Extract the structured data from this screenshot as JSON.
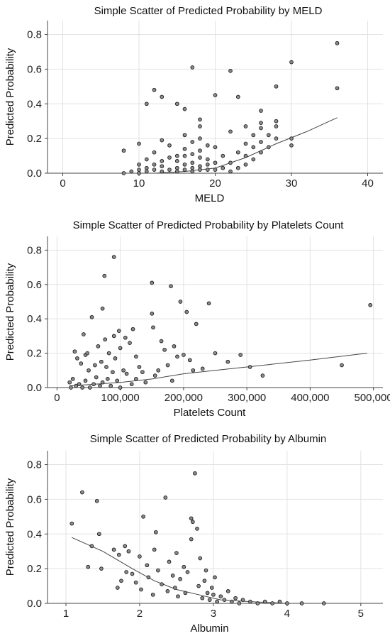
{
  "chart_data": [
    {
      "type": "scatter",
      "title": "Simple Scatter of Predicted Probability by MELD",
      "xlabel": "MELD",
      "ylabel": "Predicted Probability",
      "xlim": [
        -2,
        42
      ],
      "ylim": [
        0,
        0.88
      ],
      "xticks": [
        0,
        10,
        20,
        30,
        40
      ],
      "xticklabels": [
        "0",
        "10",
        "20",
        "30",
        "40"
      ],
      "yticks": [
        0,
        0.2,
        0.4,
        0.6,
        0.8
      ],
      "yticklabels": [
        "0.0",
        "0.2",
        "0.4",
        "0.6",
        "0.8"
      ],
      "grid": true,
      "points": [
        [
          8,
          0.13
        ],
        [
          8,
          0.0
        ],
        [
          9,
          0.01
        ],
        [
          10,
          0.17
        ],
        [
          10,
          0.0
        ],
        [
          10,
          0.02
        ],
        [
          10,
          0.05
        ],
        [
          11,
          0.4
        ],
        [
          11,
          0.01
        ],
        [
          11,
          0.03
        ],
        [
          11,
          0.08
        ],
        [
          12,
          0.48
        ],
        [
          12,
          0.02
        ],
        [
          12,
          0.05
        ],
        [
          12,
          0.12
        ],
        [
          13,
          0.44
        ],
        [
          13,
          0.19
        ],
        [
          13,
          0.01
        ],
        [
          13,
          0.04
        ],
        [
          13,
          0.07
        ],
        [
          14,
          0.16
        ],
        [
          14,
          0.02
        ],
        [
          14,
          0.09
        ],
        [
          15,
          0.4
        ],
        [
          15,
          0.01
        ],
        [
          15,
          0.03
        ],
        [
          15,
          0.1
        ],
        [
          15,
          0.07
        ],
        [
          16,
          0.37
        ],
        [
          16,
          0.22
        ],
        [
          16,
          0.14
        ],
        [
          16,
          0.02
        ],
        [
          16,
          0.05
        ],
        [
          16,
          0.1
        ],
        [
          17,
          0.61
        ],
        [
          17,
          0.18
        ],
        [
          17,
          0.11
        ],
        [
          17,
          0.01
        ],
        [
          17,
          0.03
        ],
        [
          17,
          0.06
        ],
        [
          18,
          0.31
        ],
        [
          18,
          0.27
        ],
        [
          18,
          0.2
        ],
        [
          18,
          0.09
        ],
        [
          18,
          0.04
        ],
        [
          18,
          0.02
        ],
        [
          18,
          0.13
        ],
        [
          19,
          0.16
        ],
        [
          19,
          0.02
        ],
        [
          19,
          0.05
        ],
        [
          19,
          0.08
        ],
        [
          20,
          0.45
        ],
        [
          20,
          0.15
        ],
        [
          20,
          0.02
        ],
        [
          20,
          0.06
        ],
        [
          21,
          0.1
        ],
        [
          21,
          0.03
        ],
        [
          22,
          0.59
        ],
        [
          22,
          0.24
        ],
        [
          22,
          0.01
        ],
        [
          22,
          0.06
        ],
        [
          23,
          0.44
        ],
        [
          23,
          0.12
        ],
        [
          23,
          0.03
        ],
        [
          24,
          0.27
        ],
        [
          24,
          0.17
        ],
        [
          24,
          0.1
        ],
        [
          24,
          0.05
        ],
        [
          25,
          0.22
        ],
        [
          25,
          0.15
        ],
        [
          25,
          0.08
        ],
        [
          26,
          0.36
        ],
        [
          26,
          0.29
        ],
        [
          26,
          0.26
        ],
        [
          26,
          0.18
        ],
        [
          26,
          0.12
        ],
        [
          27,
          0.22
        ],
        [
          27,
          0.15
        ],
        [
          28,
          0.5
        ],
        [
          28,
          0.3
        ],
        [
          28,
          0.27
        ],
        [
          28,
          0.2
        ],
        [
          30,
          0.64
        ],
        [
          30,
          0.2
        ],
        [
          30,
          0.16
        ],
        [
          36,
          0.75
        ],
        [
          36,
          0.49
        ]
      ],
      "fit_line": [
        [
          8,
          0.0
        ],
        [
          12,
          0.0
        ],
        [
          16,
          0.01
        ],
        [
          20,
          0.03
        ],
        [
          24,
          0.09
        ],
        [
          28,
          0.17
        ],
        [
          32,
          0.24
        ],
        [
          36,
          0.32
        ]
      ]
    },
    {
      "type": "scatter",
      "title": "Simple Scatter of Predicted Probability by Platelets Count",
      "xlabel": "Platelets Count",
      "ylabel": "Predicted Probability",
      "xlim": [
        -15000,
        515000
      ],
      "ylim": [
        0,
        0.88
      ],
      "xticks": [
        0,
        100000,
        200000,
        300000,
        400000,
        500000
      ],
      "xticklabels": [
        "0",
        "100,000",
        "200,000",
        "300,000",
        "400,000",
        "500,000"
      ],
      "yticks": [
        0,
        0.2,
        0.4,
        0.6,
        0.8
      ],
      "yticklabels": [
        "0.0",
        "0.2",
        "0.4",
        "0.6",
        "0.8"
      ],
      "grid": true,
      "points": [
        [
          20000,
          0.03
        ],
        [
          22000,
          0.0
        ],
        [
          25000,
          0.05
        ],
        [
          28000,
          0.21
        ],
        [
          30000,
          0.01
        ],
        [
          32000,
          0.17
        ],
        [
          35000,
          0.02
        ],
        [
          38000,
          0.14
        ],
        [
          40000,
          0.0
        ],
        [
          42000,
          0.31
        ],
        [
          45000,
          0.19
        ],
        [
          45000,
          0.04
        ],
        [
          48000,
          0.2
        ],
        [
          50000,
          0.1
        ],
        [
          52000,
          0.0
        ],
        [
          55000,
          0.41
        ],
        [
          58000,
          0.02
        ],
        [
          60000,
          0.13
        ],
        [
          62000,
          0.06
        ],
        [
          65000,
          0.24
        ],
        [
          68000,
          0.01
        ],
        [
          70000,
          0.15
        ],
        [
          72000,
          0.46
        ],
        [
          72000,
          0.03
        ],
        [
          75000,
          0.65
        ],
        [
          76000,
          0.28
        ],
        [
          78000,
          0.12
        ],
        [
          80000,
          0.05
        ],
        [
          82000,
          0.2
        ],
        [
          85000,
          0.01
        ],
        [
          88000,
          0.09
        ],
        [
          90000,
          0.76
        ],
        [
          90000,
          0.3
        ],
        [
          92000,
          0.17
        ],
        [
          95000,
          0.04
        ],
        [
          98000,
          0.33
        ],
        [
          100000,
          0.23
        ],
        [
          100000,
          0.0
        ],
        [
          105000,
          0.1
        ],
        [
          108000,
          0.29
        ],
        [
          110000,
          0.08
        ],
        [
          115000,
          0.26
        ],
        [
          118000,
          0.02
        ],
        [
          120000,
          0.34
        ],
        [
          125000,
          0.18
        ],
        [
          125000,
          0.05
        ],
        [
          130000,
          0.12
        ],
        [
          135000,
          0.09
        ],
        [
          140000,
          0.03
        ],
        [
          150000,
          0.61
        ],
        [
          150000,
          0.43
        ],
        [
          152000,
          0.35
        ],
        [
          155000,
          0.07
        ],
        [
          160000,
          0.1
        ],
        [
          165000,
          0.27
        ],
        [
          170000,
          0.22
        ],
        [
          175000,
          0.13
        ],
        [
          180000,
          0.59
        ],
        [
          182000,
          0.04
        ],
        [
          185000,
          0.24
        ],
        [
          190000,
          0.18
        ],
        [
          195000,
          0.5
        ],
        [
          200000,
          0.19
        ],
        [
          205000,
          0.44
        ],
        [
          210000,
          0.16
        ],
        [
          215000,
          0.1
        ],
        [
          220000,
          0.37
        ],
        [
          230000,
          0.11
        ],
        [
          240000,
          0.49
        ],
        [
          250000,
          0.2
        ],
        [
          270000,
          0.15
        ],
        [
          290000,
          0.19
        ],
        [
          305000,
          0.12
        ],
        [
          325000,
          0.07
        ],
        [
          450000,
          0.13
        ],
        [
          495000,
          0.48
        ]
      ],
      "fit_line": [
        [
          20000,
          0.01
        ],
        [
          60000,
          0.02
        ],
        [
          100000,
          0.03
        ],
        [
          150000,
          0.05
        ],
        [
          200000,
          0.08
        ],
        [
          250000,
          0.1
        ],
        [
          300000,
          0.12
        ],
        [
          400000,
          0.16
        ],
        [
          490000,
          0.2
        ]
      ]
    },
    {
      "type": "scatter",
      "title": "Simple Scatter of Predicted Probability by Albumin",
      "xlabel": "Albumin",
      "ylabel": "Predicted Probability",
      "xlim": [
        0.75,
        5.3
      ],
      "ylim": [
        0,
        0.88
      ],
      "xticks": [
        1,
        2,
        3,
        4,
        5
      ],
      "xticklabels": [
        "1",
        "2",
        "3",
        "4",
        "5"
      ],
      "yticks": [
        0,
        0.2,
        0.4,
        0.6,
        0.8
      ],
      "yticklabels": [
        "0.0",
        "0.2",
        "0.4",
        "0.6",
        "0.8"
      ],
      "grid": true,
      "points": [
        [
          1.08,
          0.46
        ],
        [
          1.22,
          0.64
        ],
        [
          1.3,
          0.21
        ],
        [
          1.35,
          0.33
        ],
        [
          1.42,
          0.59
        ],
        [
          1.45,
          0.4
        ],
        [
          1.48,
          0.2
        ],
        [
          1.65,
          0.31
        ],
        [
          1.72,
          0.28
        ],
        [
          1.7,
          0.09
        ],
        [
          1.75,
          0.13
        ],
        [
          1.8,
          0.33
        ],
        [
          1.82,
          0.18
        ],
        [
          1.85,
          0.3
        ],
        [
          1.9,
          0.17
        ],
        [
          1.95,
          0.12
        ],
        [
          2.0,
          0.27
        ],
        [
          2.02,
          0.08
        ],
        [
          2.05,
          0.5
        ],
        [
          2.1,
          0.22
        ],
        [
          2.12,
          0.15
        ],
        [
          2.18,
          0.05
        ],
        [
          2.2,
          0.31
        ],
        [
          2.22,
          0.41
        ],
        [
          2.25,
          0.19
        ],
        [
          2.3,
          0.11
        ],
        [
          2.35,
          0.61
        ],
        [
          2.38,
          0.07
        ],
        [
          2.4,
          0.24
        ],
        [
          2.45,
          0.16
        ],
        [
          2.48,
          0.09
        ],
        [
          2.5,
          0.29
        ],
        [
          2.52,
          0.04
        ],
        [
          2.55,
          0.14
        ],
        [
          2.6,
          0.21
        ],
        [
          2.62,
          0.06
        ],
        [
          2.65,
          0.18
        ],
        [
          2.7,
          0.49
        ],
        [
          2.7,
          0.37
        ],
        [
          2.72,
          0.47
        ],
        [
          2.75,
          0.75
        ],
        [
          2.78,
          0.43
        ],
        [
          2.8,
          0.1
        ],
        [
          2.82,
          0.26
        ],
        [
          2.85,
          0.03
        ],
        [
          2.88,
          0.13
        ],
        [
          2.9,
          0.19
        ],
        [
          2.92,
          0.06
        ],
        [
          2.95,
          0.02
        ],
        [
          2.98,
          0.09
        ],
        [
          3.0,
          0.05
        ],
        [
          3.02,
          0.15
        ],
        [
          3.05,
          0.01
        ],
        [
          3.1,
          0.04
        ],
        [
          3.15,
          0.02
        ],
        [
          3.2,
          0.07
        ],
        [
          3.25,
          0.01
        ],
        [
          3.3,
          0.03
        ],
        [
          3.35,
          0.0
        ],
        [
          3.4,
          0.02
        ],
        [
          3.5,
          0.01
        ],
        [
          3.6,
          0.0
        ],
        [
          3.7,
          0.01
        ],
        [
          3.8,
          0.0
        ],
        [
          3.9,
          0.01
        ],
        [
          4.0,
          0.0
        ],
        [
          4.2,
          0.0
        ],
        [
          4.5,
          0.0
        ]
      ],
      "fit_line": [
        [
          1.08,
          0.38
        ],
        [
          1.5,
          0.3
        ],
        [
          1.9,
          0.2
        ],
        [
          2.2,
          0.13
        ],
        [
          2.5,
          0.08
        ],
        [
          2.8,
          0.05
        ],
        [
          3.1,
          0.02
        ],
        [
          3.5,
          0.01
        ],
        [
          4.0,
          0.0
        ],
        [
          4.5,
          0.0
        ]
      ]
    }
  ]
}
